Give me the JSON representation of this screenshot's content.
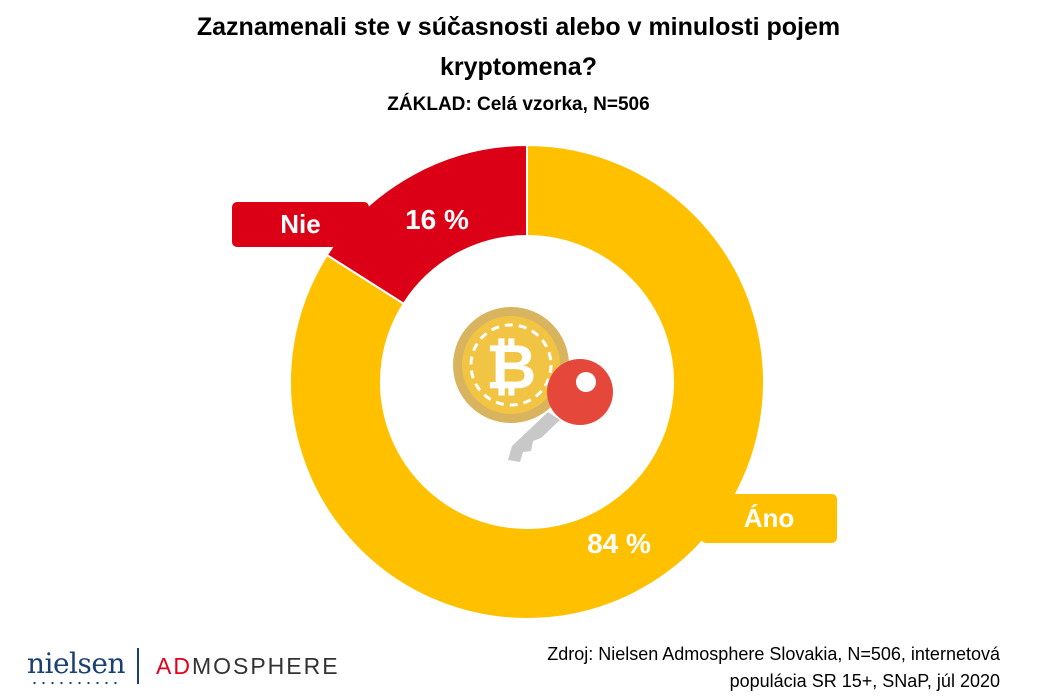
{
  "chart_data": {
    "type": "pie",
    "variant": "donut",
    "title_line1": "Zaznamenali ste v súčasnosti alebo v minulosti pojem",
    "title_line2": "kryptomena?",
    "subtitle": "ZÁKLAD: Celá vzorka, N=506",
    "slices": [
      {
        "name": "Áno",
        "value": 84,
        "label": "84 %",
        "color": "#FFC000"
      },
      {
        "name": "Nie",
        "value": 16,
        "label": "16 %",
        "color": "#DC0016"
      }
    ],
    "center_icon": "bitcoin-key-icon"
  },
  "footer": {
    "source_line1": "Zdroj: Nielsen Admosphere Slovakia, N=506, internetová",
    "source_line2": "populácia SR 15+, SNaP, júl 2020",
    "logo_nielsen": "nielsen",
    "logo_ad": "AD",
    "logo_mosphere": "MOSPHERE"
  }
}
